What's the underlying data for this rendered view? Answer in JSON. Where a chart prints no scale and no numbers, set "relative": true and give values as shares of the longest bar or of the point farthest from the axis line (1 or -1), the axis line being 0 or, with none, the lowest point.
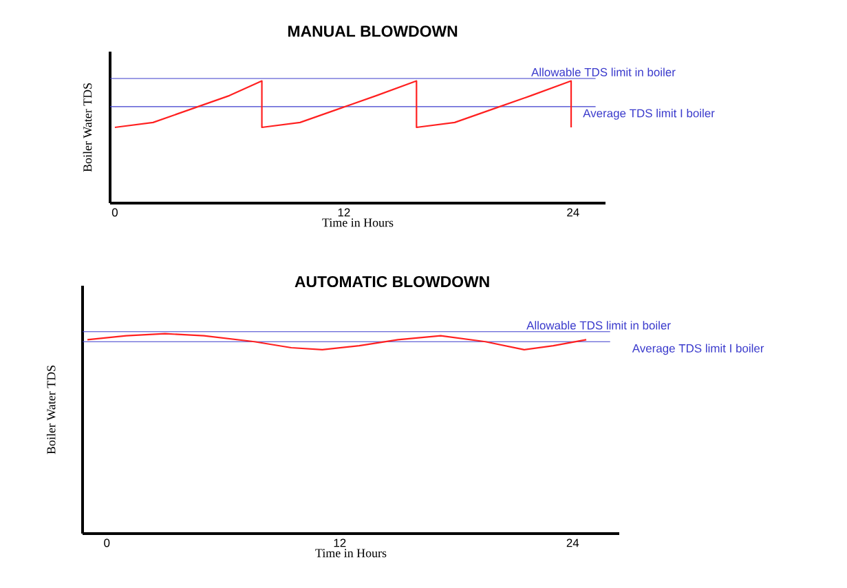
{
  "chart_data": [
    {
      "type": "line",
      "title": "MANUAL BLOWDOWN",
      "xlabel": "Time in Hours",
      "ylabel": "Boiler Water TDS",
      "relative": true,
      "marker": "none",
      "xlim": [
        -0.25,
        25.7
      ],
      "xticks": [
        0,
        12,
        24
      ],
      "x": [
        0,
        2,
        4,
        6,
        7.7,
        7.7,
        9.7,
        11.7,
        13.7,
        15.8,
        15.8,
        17.8,
        19.8,
        21.8,
        23.9,
        23.9
      ],
      "series": [
        {
          "color": "#ff2020",
          "values": [
            0.62,
            0.66,
            0.77,
            0.88,
            1.0,
            0.62,
            0.66,
            0.77,
            0.88,
            1.0,
            0.62,
            0.66,
            0.77,
            0.88,
            1.0,
            0.62
          ]
        }
      ],
      "ref_lines": [
        {
          "axis": "y",
          "value": 1.02,
          "label": "Allowable TDS limit in boiler",
          "color": "#3a3acc"
        },
        {
          "axis": "y",
          "value": 0.79,
          "label": "Average TDS limit I boiler",
          "color": "#3a3acc"
        }
      ]
    },
    {
      "type": "line",
      "title": "AUTOMATIC  BLOWDOWN",
      "xlabel": "Time in Hours",
      "ylabel": "Boiler Water TDS",
      "relative": true,
      "marker": "none",
      "xlim": [
        -1.25,
        26.4
      ],
      "xticks": [
        0,
        12,
        24
      ],
      "x": [
        -1,
        1,
        3,
        5,
        7.6,
        9.5,
        11.1,
        13,
        15,
        17.2,
        19.5,
        21.5,
        23,
        24.7
      ],
      "series": [
        {
          "color": "#ff2020",
          "values": [
            0.97,
            0.99,
            1.0,
            0.99,
            0.96,
            0.93,
            0.92,
            0.94,
            0.97,
            0.99,
            0.96,
            0.92,
            0.94,
            0.97
          ]
        }
      ],
      "ref_lines": [
        {
          "axis": "y",
          "value": 1.01,
          "label": "Allowable TDS limit in boiler",
          "color": "#3a3acc"
        },
        {
          "axis": "y",
          "value": 0.96,
          "label": "Average TDS limit I boiler",
          "color": "#3a3acc"
        }
      ]
    }
  ]
}
